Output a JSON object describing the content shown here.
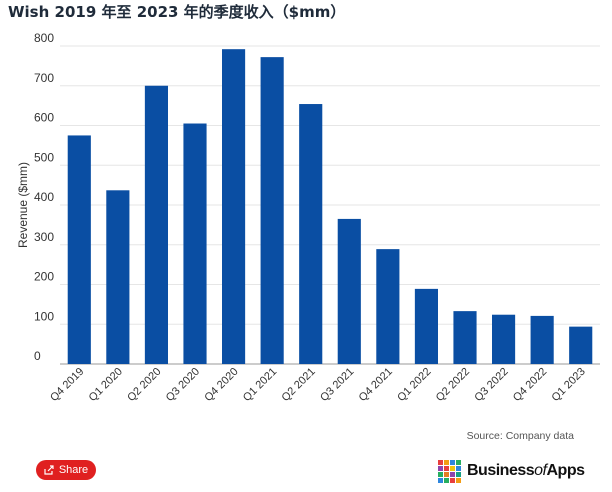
{
  "title": "Wish 2019 年至 2023 年的季度收入（$mm）",
  "source": "Source: Company data",
  "share_label": "Share",
  "brand": {
    "name_part1": "Business",
    "name_part2": "of",
    "name_part3": "Apps"
  },
  "colors": {
    "bar": "#0a4ea3",
    "share_button": "#e02020"
  },
  "chart_data": {
    "type": "bar",
    "title": "Wish 2019 年至 2023 年的季度收入（$mm）",
    "xlabel": "",
    "ylabel": "Revenue ($mm)",
    "ylim": [
      0,
      800
    ],
    "yticks": [
      0,
      100,
      200,
      300,
      400,
      500,
      600,
      700,
      800
    ],
    "grid": true,
    "legend": "none",
    "categories": [
      "Q4 2019",
      "Q1 2020",
      "Q2 2020",
      "Q3 2020",
      "Q4 2020",
      "Q1 2021",
      "Q2 2021",
      "Q3 2021",
      "Q4 2021",
      "Q1 2022",
      "Q2 2022",
      "Q3 2022",
      "Q4 2022",
      "Q1 2023"
    ],
    "values": [
      575,
      437,
      700,
      605,
      792,
      772,
      654,
      365,
      289,
      189,
      133,
      124,
      121,
      94
    ]
  }
}
